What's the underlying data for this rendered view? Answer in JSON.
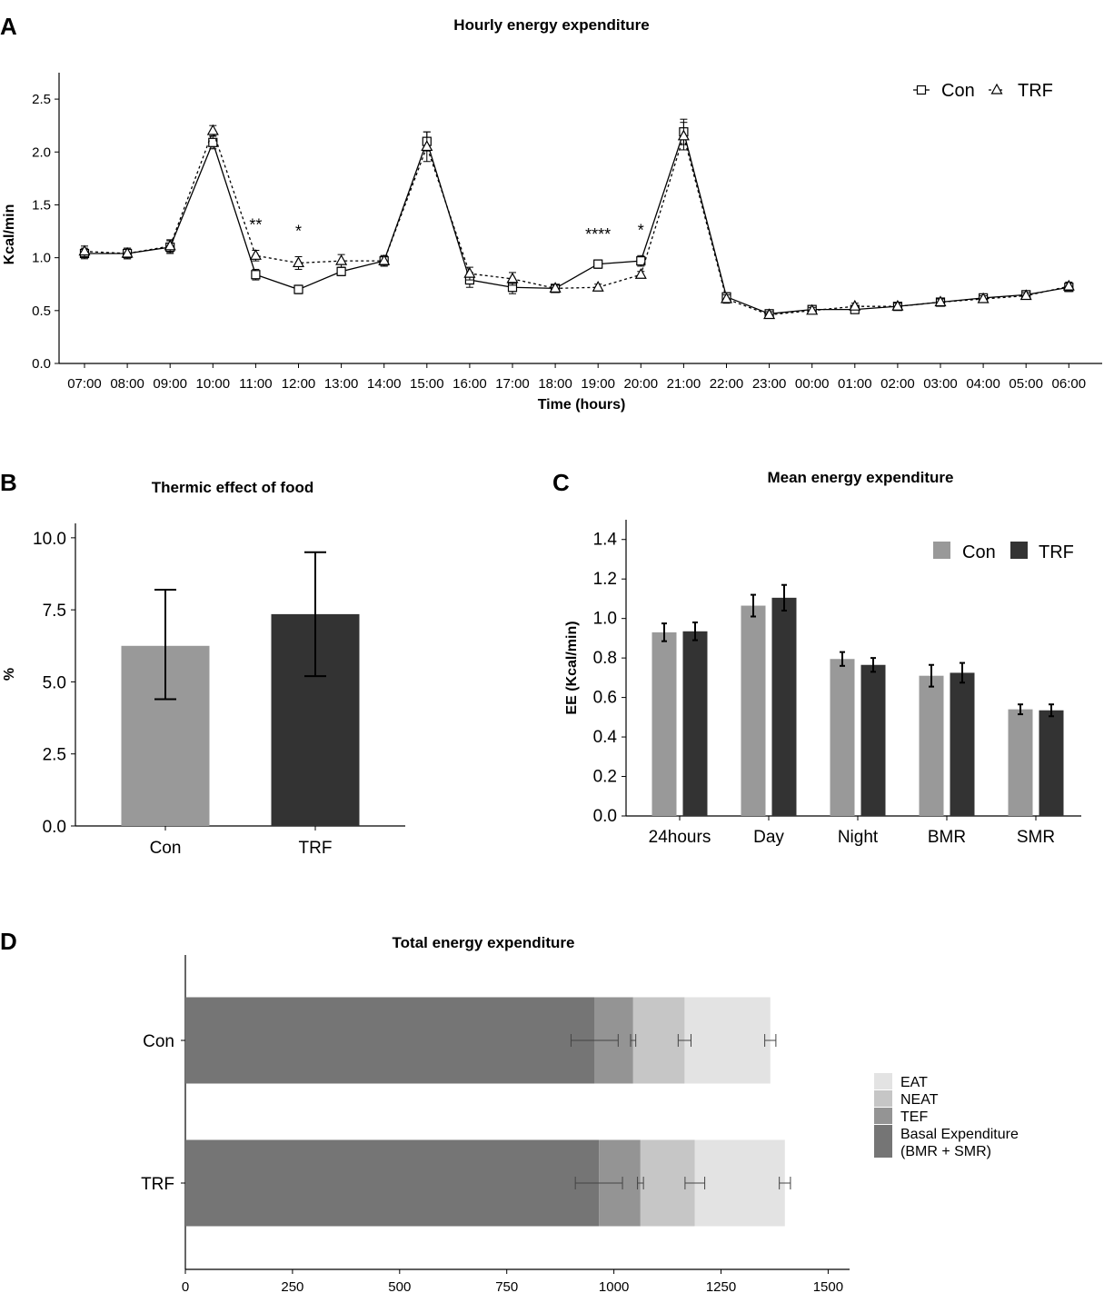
{
  "chart_data": [
    {
      "panel": "A",
      "type": "line",
      "title": "Hourly energy expenditure",
      "xlabel": "Time (hours)",
      "ylabel": "Kcal/min",
      "ylim": [
        0,
        2.75
      ],
      "yticks": [
        "0.0",
        "0.5",
        "1.0",
        "1.5",
        "2.0",
        "2.5"
      ],
      "categories": [
        "07:00",
        "08:00",
        "09:00",
        "10:00",
        "11:00",
        "12:00",
        "13:00",
        "14:00",
        "15:00",
        "16:00",
        "17:00",
        "18:00",
        "19:00",
        "20:00",
        "21:00",
        "22:00",
        "23:00",
        "00:00",
        "01:00",
        "02:00",
        "03:00",
        "04:00",
        "05:00",
        "06:00"
      ],
      "series": [
        {
          "name": "Con",
          "marker": "square",
          "line": "solid",
          "values": [
            1.04,
            1.04,
            1.1,
            2.09,
            0.84,
            0.7,
            0.87,
            0.97,
            2.1,
            0.79,
            0.72,
            0.71,
            0.94,
            0.97,
            2.19,
            0.63,
            0.47,
            0.51,
            0.51,
            0.54,
            0.58,
            0.62,
            0.65,
            0.72
          ],
          "errors": [
            0.05,
            0.05,
            0.06,
            0.06,
            0.05,
            0.04,
            0.04,
            0.05,
            0.09,
            0.07,
            0.06,
            0.03,
            0.04,
            0.05,
            0.12,
            0.04,
            0.03,
            0.03,
            0.03,
            0.03,
            0.03,
            0.03,
            0.03,
            0.04
          ]
        },
        {
          "name": "TRF",
          "marker": "triangle",
          "line": "dotted",
          "values": [
            1.06,
            1.04,
            1.11,
            2.2,
            1.02,
            0.95,
            0.97,
            0.97,
            2.05,
            0.85,
            0.8,
            0.71,
            0.72,
            0.84,
            2.15,
            0.61,
            0.46,
            0.5,
            0.54,
            0.54,
            0.58,
            0.61,
            0.64,
            0.73
          ],
          "errors": [
            0.05,
            0.05,
            0.06,
            0.05,
            0.05,
            0.06,
            0.06,
            0.05,
            0.14,
            0.06,
            0.06,
            0.03,
            0.03,
            0.03,
            0.13,
            0.04,
            0.03,
            0.03,
            0.03,
            0.03,
            0.03,
            0.03,
            0.03,
            0.04
          ]
        }
      ],
      "annotations": [
        {
          "category": "11:00",
          "text": "**"
        },
        {
          "category": "12:00",
          "text": "*"
        },
        {
          "category": "19:00",
          "text": "****"
        },
        {
          "category": "20:00",
          "text": "*"
        }
      ],
      "legend": "top-right",
      "legend_labels": [
        "Con",
        "TRF"
      ]
    },
    {
      "panel": "B",
      "type": "bar",
      "title": "Thermic effect of food",
      "ylabel": "%",
      "xlabel": "",
      "ylim": [
        0,
        10.5
      ],
      "yticks": [
        "0.0",
        "2.5",
        "5.0",
        "7.5",
        "10.0"
      ],
      "categories": [
        "Con",
        "TRF"
      ],
      "values": [
        6.25,
        7.35
      ],
      "error_low": [
        4.4,
        5.2
      ],
      "error_high": [
        8.2,
        9.5
      ],
      "colors": [
        "#999999",
        "#333333"
      ]
    },
    {
      "panel": "C",
      "type": "bar",
      "title": "Mean energy expenditure",
      "ylabel": "EE (Kcal/min)",
      "xlabel": "",
      "ylim": [
        0,
        1.5
      ],
      "yticks": [
        "0.0",
        "0.2",
        "0.4",
        "0.6",
        "0.8",
        "1.0",
        "1.2",
        "1.4"
      ],
      "categories": [
        "24hours",
        "Day",
        "Night",
        "BMR",
        "SMR"
      ],
      "series": [
        {
          "name": "Con",
          "color": "#999999",
          "values": [
            0.93,
            1.065,
            0.795,
            0.71,
            0.54
          ],
          "errors": [
            0.045,
            0.055,
            0.035,
            0.055,
            0.025
          ]
        },
        {
          "name": "TRF",
          "color": "#333333",
          "values": [
            0.935,
            1.105,
            0.765,
            0.725,
            0.535
          ],
          "errors": [
            0.045,
            0.065,
            0.035,
            0.05,
            0.03
          ]
        }
      ],
      "legend": "top-right"
    },
    {
      "panel": "D",
      "type": "bar",
      "orientation": "horizontal-stacked",
      "title": "Total energy expenditure",
      "xlabel": "",
      "ylabel": "",
      "xlim": [
        0,
        1550
      ],
      "xticks": [
        "0",
        "250",
        "500",
        "750",
        "1000",
        "1250",
        "1500"
      ],
      "categories": [
        "Con",
        "TRF"
      ],
      "series": [
        {
          "name": "Basal Expenditure (BMR + SMR)",
          "legend_line1": "Basal Expenditure",
          "legend_line2": " (BMR + SMR)",
          "color": "#757575",
          "values": [
            955,
            965
          ],
          "errors": [
            55,
            55
          ]
        },
        {
          "name": "TEF",
          "legend_line1": "TEF",
          "color": "#949494",
          "values": [
            90,
            97
          ],
          "errors": [
            6,
            7
          ]
        },
        {
          "name": "NEAT",
          "legend_line1": "NEAT",
          "color": "#c6c6c6",
          "values": [
            120,
            127
          ],
          "errors": [
            15,
            23
          ]
        },
        {
          "name": "EAT",
          "legend_line1": "EAT",
          "color": "#e3e3e3",
          "values": [
            200,
            210
          ],
          "errors": [
            13,
            13
          ]
        }
      ],
      "legend": "right"
    }
  ]
}
